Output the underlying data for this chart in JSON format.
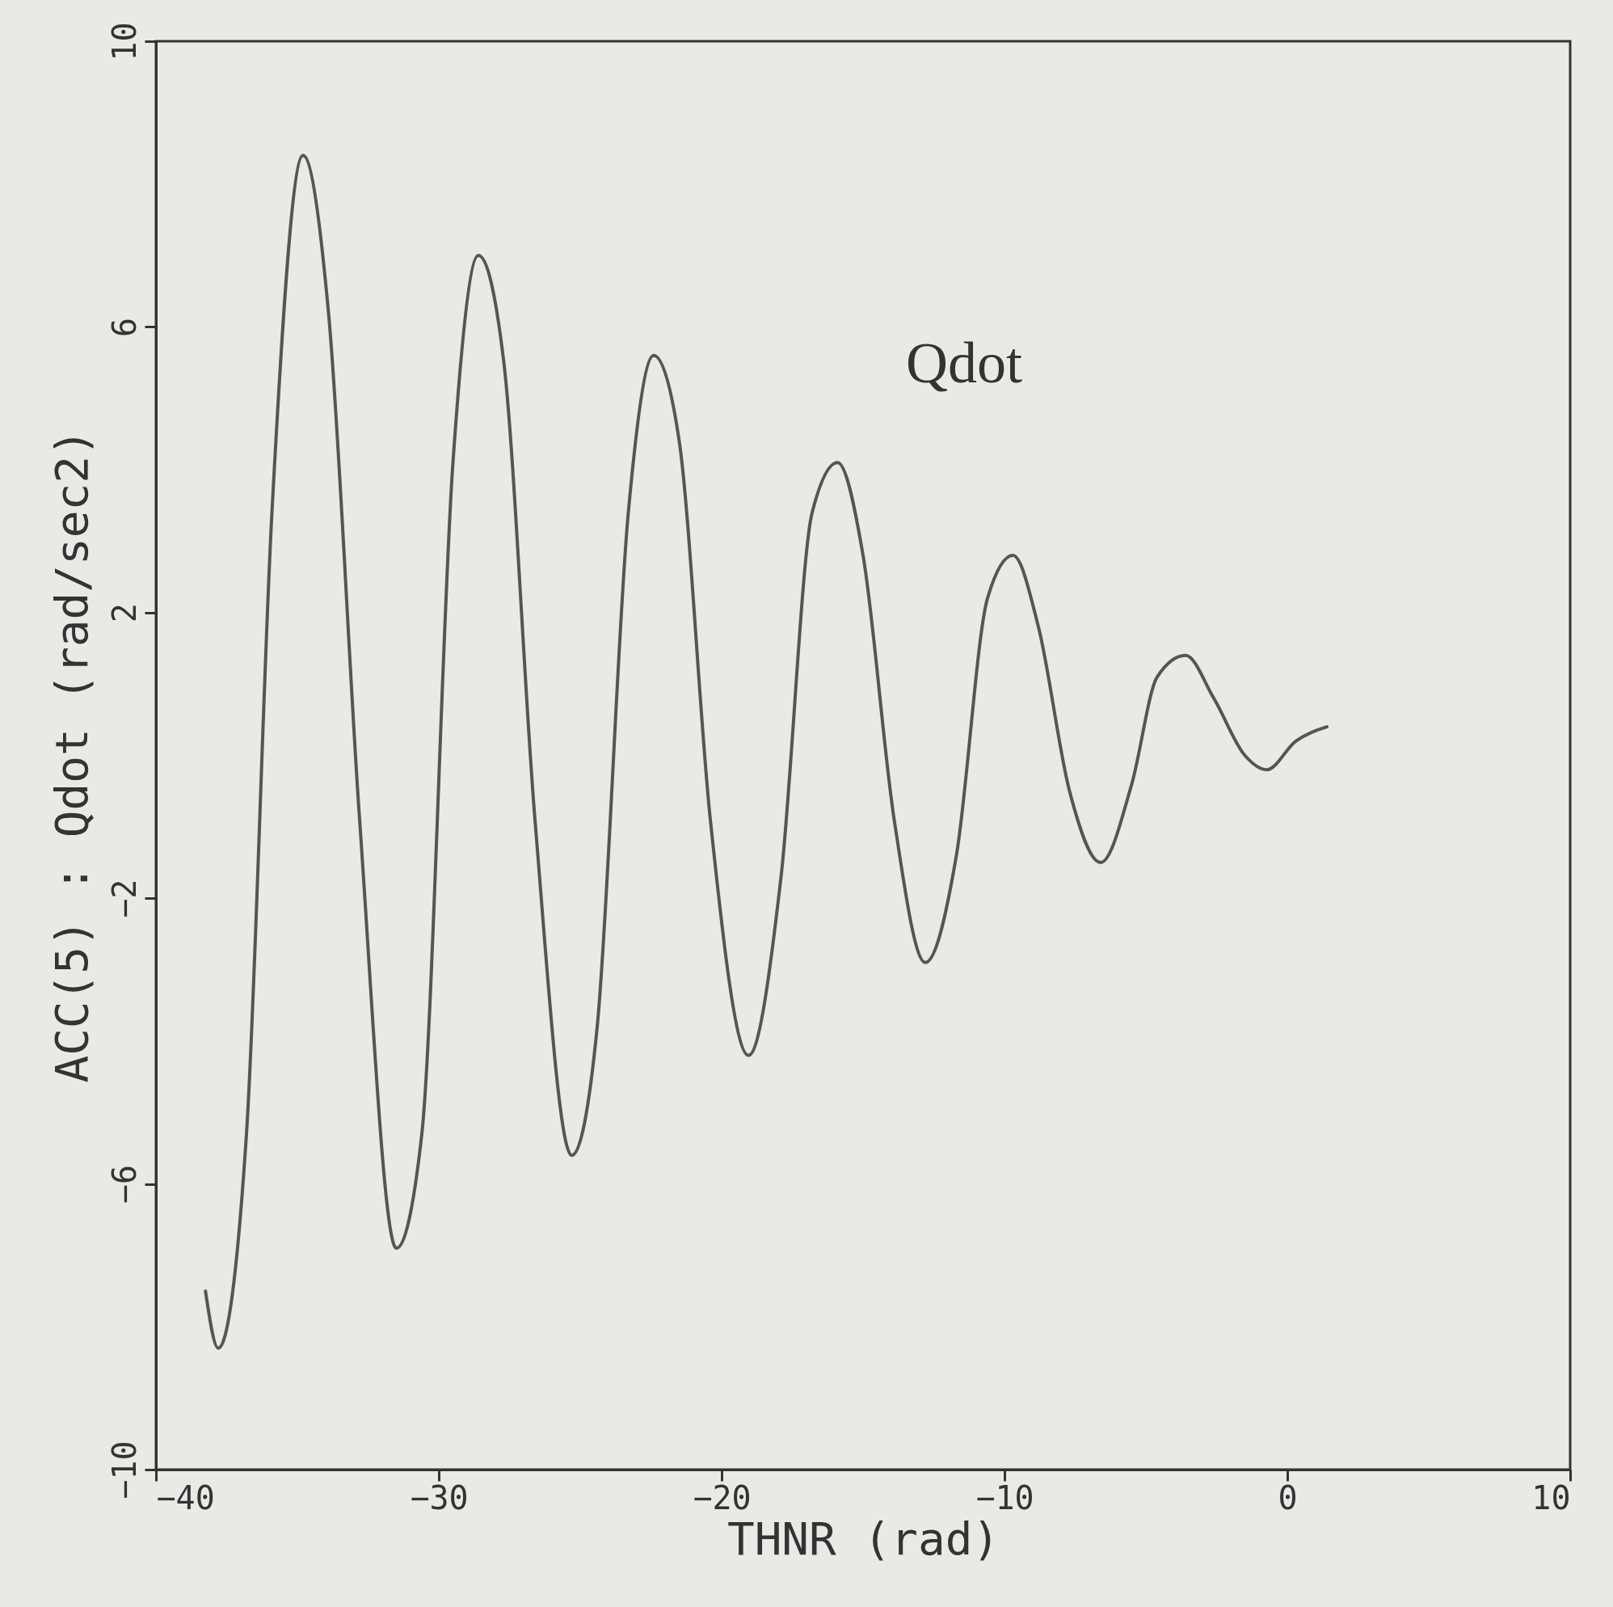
{
  "chart_data": {
    "type": "line",
    "xlabel": "THNR  (rad)",
    "ylabel": "ACC(5)  : Qdot  (rad/sec2)",
    "annotations": [
      "Qdot"
    ],
    "x": [
      -38.25,
      -37.8,
      -36.8,
      -35.9,
      -34.8,
      -33.9,
      -32.8,
      -31.5,
      -30.6,
      -29.5,
      -28.6,
      -27.7,
      -26.6,
      -25.3,
      -24.4,
      -23.3,
      -22.4,
      -21.5,
      -20.4,
      -19.05,
      -17.9,
      -16.8,
      -15.9,
      -15.0,
      -13.9,
      -12.8,
      -11.7,
      -10.6,
      -9.7,
      -8.8,
      -7.7,
      -6.6,
      -5.5,
      -4.6,
      -3.6,
      -2.6,
      -1.5,
      -0.73,
      0.3,
      1.4
    ],
    "series": [
      {
        "color": "#555555",
        "values": [
          -7.5,
          -8.3,
          -5.3,
          3.4,
          8.4,
          6.2,
          -0.9,
          -6.9,
          -5.3,
          4.1,
          7.0,
          5.5,
          -0.9,
          -5.6,
          -3.8,
          3.4,
          5.6,
          4.4,
          -0.9,
          -4.2,
          -1.7,
          3.4,
          4.1,
          2.8,
          -0.9,
          -2.9,
          -1.4,
          2.2,
          2.8,
          1.8,
          -0.5,
          -1.5,
          -0.4,
          1.1,
          1.4,
          0.8,
          0.0,
          -0.2,
          0.2,
          0.4
        ]
      }
    ],
    "xlim": [
      -40,
      10
    ],
    "xticks": [
      -40,
      -30,
      -20,
      -10,
      0,
      10
    ],
    "ylim": [
      -10,
      10
    ],
    "yticks": [
      -10,
      -6,
      -2,
      2,
      6,
      10
    ],
    "grid": false,
    "marker": "none",
    "line_style": "solid"
  }
}
